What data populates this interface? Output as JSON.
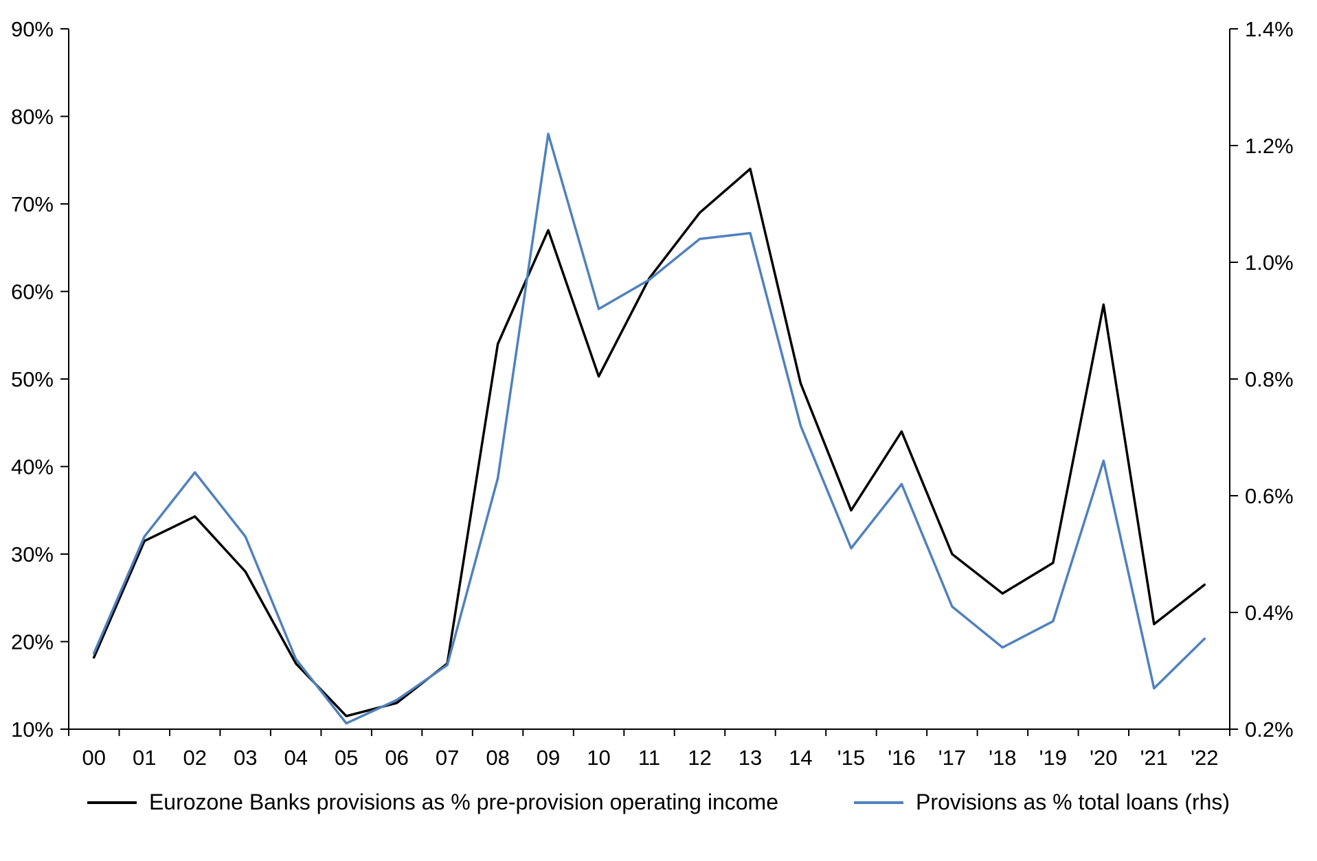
{
  "chart_data": {
    "type": "line",
    "title": "",
    "xlabel": "",
    "ylabel_left": "",
    "ylabel_right": "",
    "grid": false,
    "legend_position": "bottom",
    "categories": [
      "00",
      "01",
      "02",
      "03",
      "04",
      "05",
      "06",
      "07",
      "08",
      "09",
      "10",
      "11",
      "12",
      "13",
      "14",
      "'15",
      "'16",
      "'17",
      "'18",
      "'19",
      "'20",
      "'21",
      "'22"
    ],
    "left_axis": {
      "min": 10,
      "max": 90,
      "step": 10,
      "tick_labels": [
        "10%",
        "20%",
        "30%",
        "40%",
        "50%",
        "60%",
        "70%",
        "80%",
        "90%"
      ]
    },
    "right_axis": {
      "min": 0.2,
      "max": 1.4,
      "step": 0.2,
      "tick_labels": [
        "0.2%",
        "0.4%",
        "0.6%",
        "0.8%",
        "1.0%",
        "1.2%",
        "1.4%"
      ]
    },
    "series": [
      {
        "name": "Eurozone Banks provisions as % pre-provision operating income",
        "axis": "left",
        "color": "#000000",
        "values": [
          18.2,
          31.5,
          34.3,
          28.0,
          17.5,
          11.5,
          13.0,
          17.5,
          54.0,
          67.0,
          50.3,
          61.5,
          69.0,
          74.0,
          49.5,
          35.0,
          44.0,
          30.0,
          25.5,
          29.0,
          58.5,
          22.0,
          26.5
        ]
      },
      {
        "name": "Provisions as % total loans (rhs)",
        "axis": "right",
        "color": "#4F81BD",
        "values": [
          0.33,
          0.53,
          0.64,
          0.53,
          0.32,
          0.21,
          0.25,
          0.31,
          0.63,
          1.22,
          0.92,
          0.97,
          1.04,
          1.05,
          0.72,
          0.51,
          0.62,
          0.41,
          0.34,
          0.385,
          0.66,
          0.27,
          0.355
        ]
      }
    ]
  },
  "legend": {
    "items": [
      {
        "label": "Eurozone Banks provisions as % pre-provision operating income",
        "color": "#000000"
      },
      {
        "label": "Provisions as % total loans (rhs)",
        "color": "#4F81BD"
      }
    ]
  }
}
